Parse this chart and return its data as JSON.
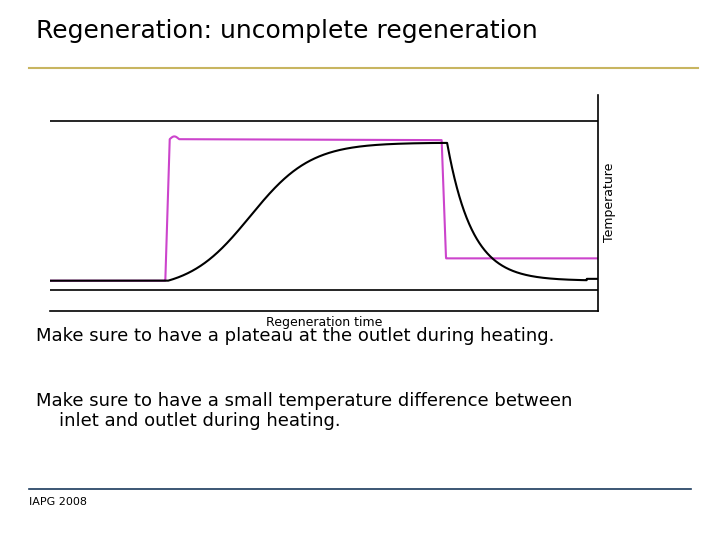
{
  "title": "Regeneration: uncomplete regeneration",
  "title_fontsize": 18,
  "title_color": "#000000",
  "title_fontweight": "normal",
  "xlabel": "Regeneration time",
  "ylabel": "Temperature",
  "ylabel_fontsize": 9,
  "xlabel_fontsize": 9,
  "line_color_black": "#000000",
  "line_color_magenta": "#cc44cc",
  "line_width": 1.5,
  "text1": "Make sure to have a plateau at the outlet during heating.",
  "text2": "Make sure to have a small temperature difference between\n    inlet and outlet during heating.",
  "footer": "IAPG 2008",
  "text_fontsize": 13,
  "footer_fontsize": 8,
  "bg_color": "#ffffff",
  "gold_line_color": "#c8b560",
  "navy_line_color": "#1a3a5c",
  "T_low": 0.08,
  "T_high": 0.9,
  "black_high": 0.82,
  "outlet_plateau_high": 0.84,
  "outlet_plateau_low": 0.2
}
